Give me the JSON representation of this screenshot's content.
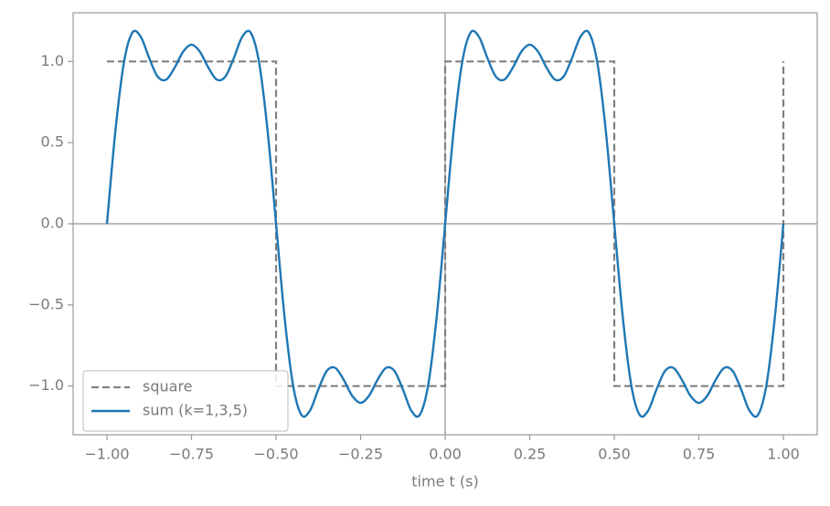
{
  "chart_data": {
    "type": "line",
    "xlabel": "time t (s)",
    "xlim": [
      -1.1,
      1.1
    ],
    "ylim": [
      -1.3,
      1.3
    ],
    "xticks": [
      {
        "value": -1,
        "label": "−1.00"
      },
      {
        "value": -0.75,
        "label": "−0.75"
      },
      {
        "value": -0.5,
        "label": "−0.50"
      },
      {
        "value": -0.25,
        "label": "−0.25"
      },
      {
        "value": 0,
        "label": "0.00"
      },
      0.25,
      {
        "value": 0.5,
        "label": "0.50"
      },
      0.75,
      {
        "value": 1,
        "label": "1.00"
      }
    ],
    "yticks": [
      {
        "value": -1,
        "label": "−1.0"
      },
      {
        "value": -0.5,
        "label": "−0.5"
      },
      {
        "value": 0,
        "label": "0.0"
      },
      0.5,
      {
        "value": 1,
        "label": "1.0"
      }
    ],
    "legend": "lower left",
    "series": [
      {
        "name": "square",
        "color": "#808080",
        "dash": true,
        "x": [
          -1,
          -0.5,
          -0.5,
          0,
          0,
          0.5,
          0.5,
          1,
          1
        ],
        "values": [
          1,
          1,
          -1,
          -1,
          1,
          1,
          -1,
          -1,
          1
        ]
      },
      {
        "name": "sum (k=1,3,5)",
        "color": "#1f77b4",
        "dash": false,
        "x": [
          -1,
          -0.975,
          -0.95,
          -0.925,
          -0.9,
          -0.875,
          -0.85,
          -0.825,
          -0.8,
          -0.775,
          -0.75,
          -0.725,
          -0.7,
          -0.675,
          -0.65,
          -0.625,
          -0.6,
          -0.575,
          -0.55,
          -0.525,
          -0.5,
          -0.475,
          -0.45,
          -0.425,
          -0.4,
          -0.375,
          -0.35,
          -0.325,
          -0.3,
          -0.275,
          -0.25,
          -0.225,
          -0.2,
          -0.175,
          -0.15,
          -0.125,
          -0.1,
          -0.075,
          -0.05,
          -0.025,
          0,
          0.025,
          0.05,
          0.075,
          0.1,
          0.125,
          0.15,
          0.175,
          0.2,
          0.225,
          0.25,
          0.275,
          0.3,
          0.325,
          0.35,
          0.375,
          0.4,
          0.425,
          0.45,
          0.475,
          0.5,
          0.525,
          0.55,
          0.575,
          0.6,
          0.625,
          0.65,
          0.675,
          0.7,
          0.725,
          0.75,
          0.775,
          0.8,
          0.825,
          0.85,
          0.875,
          0.9,
          0.925,
          0.95,
          0.975,
          1
        ],
        "values": [
          0,
          0.5719,
          0.9915,
          1.1773,
          1.152,
          1.0204,
          0.9066,
          0.888,
          0.9615,
          1.0595,
          1.1035,
          1.0595,
          0.9615,
          0.888,
          0.9066,
          1.0204,
          1.152,
          1.1773,
          0.9915,
          0.5719,
          0,
          -0.5719,
          -0.9915,
          -1.1773,
          -1.152,
          -1.0204,
          -0.9066,
          -0.888,
          -0.9615,
          -1.0595,
          -1.1035,
          -1.0595,
          -0.9615,
          -0.888,
          -0.9066,
          -1.0204,
          -1.152,
          -1.1773,
          -0.9915,
          -0.5719,
          0,
          0.5719,
          0.9915,
          1.1773,
          1.152,
          1.0204,
          0.9066,
          0.888,
          0.9615,
          1.0595,
          1.1035,
          1.0595,
          0.9615,
          0.888,
          0.9066,
          1.0204,
          1.152,
          1.1773,
          0.9915,
          0.5719,
          0,
          -0.5719,
          -0.9915,
          -1.1773,
          -1.152,
          -1.0204,
          -0.9066,
          -0.888,
          -0.9615,
          -1.0595,
          -1.1035,
          -1.0595,
          -0.9615,
          -0.888,
          -0.9066,
          -1.0204,
          -1.152,
          -1.1773,
          -0.9915,
          -0.5719,
          0
        ]
      }
    ]
  }
}
